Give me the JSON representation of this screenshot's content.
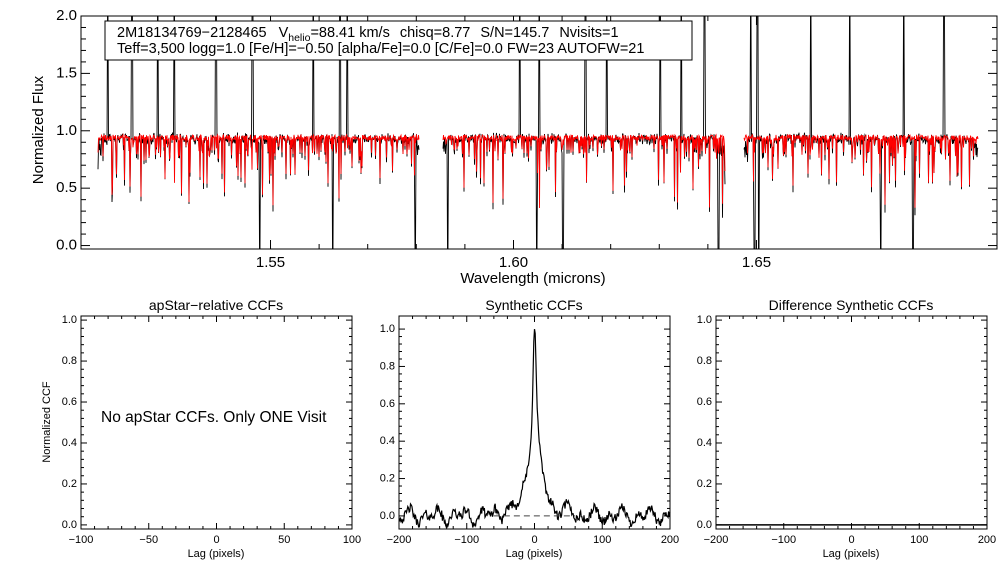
{
  "chart_data": [
    {
      "type": "line",
      "id": "spectrum",
      "xlabel": "Wavelength (microns)",
      "ylabel": "Normalized Flux",
      "xlim": [
        1.511,
        1.6995
      ],
      "ylim": [
        -0.03,
        2.0
      ],
      "x_ticks": [
        1.55,
        1.6,
        1.65
      ],
      "x_tick_labels": [
        "1.55",
        "1.60",
        "1.65"
      ],
      "y_ticks": [
        0.0,
        0.5,
        1.0,
        1.5,
        2.0
      ],
      "y_tick_labels": [
        "0.0",
        "0.5",
        "1.0",
        "1.5",
        "2.0"
      ],
      "chip_ranges": [
        [
          1.5145,
          1.5805
        ],
        [
          1.5855,
          1.6435
        ],
        [
          1.6475,
          1.6955
        ]
      ],
      "legend": {
        "star_id": "2M18134769−2128465",
        "vhelio_prefix": "V",
        "vhelio_sub": "helio",
        "vhelio_value": "=88.41 km/s",
        "chisq": "chisq=8.77",
        "snr": "S/N=145.7",
        "nvisits": "Nvisits=1",
        "params": "Teff=3,500 logg=1.0 [Fe/H]=−0.50 [alpha/Fe]=0.0 [C/Fe]=0.0 FW=23 AUTOFW=21"
      },
      "series": [
        {
          "name": "observed spectrum",
          "color": "#000000",
          "continuum": 0.93
        },
        {
          "name": "best-fit synthetic",
          "color": "#ff0000",
          "continuum": 0.94
        }
      ],
      "emission_spikes": [
        1.5165,
        1.5215,
        1.5268,
        1.5302,
        1.5388,
        1.5463,
        1.5588,
        1.5643,
        1.5658,
        1.6013,
        1.6053,
        1.6148,
        1.6192,
        1.6302,
        1.6345,
        1.6393,
        1.6442,
        1.6488,
        1.6502,
        1.6612,
        1.6692,
        1.6803,
        1.6886
      ],
      "absorption_drops": [
        1.5478,
        1.5628,
        1.5798,
        1.5865,
        1.6048,
        1.6102,
        1.6422,
        1.6496,
        1.6505,
        1.6756,
        1.6822
      ]
    },
    {
      "type": "line",
      "id": "apstar-ccf",
      "title": "apStar−relative CCFs",
      "xlabel": "Lag (pixels)",
      "ylabel": "Normalized CCF",
      "xlim": [
        -100,
        100
      ],
      "ylim": [
        -0.02,
        1.02
      ],
      "x_ticks": [
        -100,
        -50,
        0,
        50,
        100
      ],
      "x_tick_labels": [
        "−100",
        "−50",
        "0",
        "50",
        "100"
      ],
      "y_ticks": [
        0.0,
        0.2,
        0.4,
        0.6,
        0.8,
        1.0
      ],
      "y_tick_labels": [
        "0.0",
        "0.2",
        "0.4",
        "0.6",
        "0.8",
        "1.0"
      ],
      "note": "No apStar CCFs.  Only ONE Visit",
      "series": []
    },
    {
      "type": "line",
      "id": "synthetic-ccf",
      "title": "Synthetic CCFs",
      "xlabel": "Lag (pixels)",
      "xlim": [
        -200,
        200
      ],
      "ylim": [
        -0.07,
        1.07
      ],
      "x_ticks": [
        -200,
        -100,
        0,
        100,
        200
      ],
      "x_tick_labels": [
        "−200",
        "−100",
        "0",
        "100",
        "200"
      ],
      "y_ticks": [
        0.0,
        0.2,
        0.4,
        0.6,
        0.8,
        1.0
      ],
      "y_tick_labels": [
        "0.0",
        "0.2",
        "0.4",
        "0.6",
        "0.8",
        "1.0"
      ],
      "series": [
        {
          "name": "synthetic CCF",
          "color": "#000000",
          "peak_lag": 0,
          "peak_value": 1.0
        },
        {
          "name": "zero level",
          "color": "#444444",
          "style": "dashed",
          "x": [
            -60,
            60
          ],
          "y": [
            0.0,
            0.0
          ]
        }
      ]
    },
    {
      "type": "line",
      "id": "difference-ccf",
      "title": "Difference Synthetic CCFs",
      "xlabel": "Lag (pixels)",
      "xlim": [
        -200,
        200
      ],
      "ylim": [
        -0.02,
        1.02
      ],
      "x_ticks": [
        -200,
        -100,
        0,
        100,
        200
      ],
      "x_tick_labels": [
        "−200",
        "−100",
        "0",
        "100",
        "200"
      ],
      "y_ticks": [
        0.0,
        0.2,
        0.4,
        0.6,
        0.8,
        1.0
      ],
      "y_tick_labels": [
        "0.0",
        "0.2",
        "0.4",
        "0.6",
        "0.8",
        "1.0"
      ],
      "series": [
        {
          "name": "difference CCF",
          "color": "#000000",
          "x": [
            -200,
            200
          ],
          "y": [
            0.0,
            0.0
          ]
        }
      ]
    }
  ]
}
